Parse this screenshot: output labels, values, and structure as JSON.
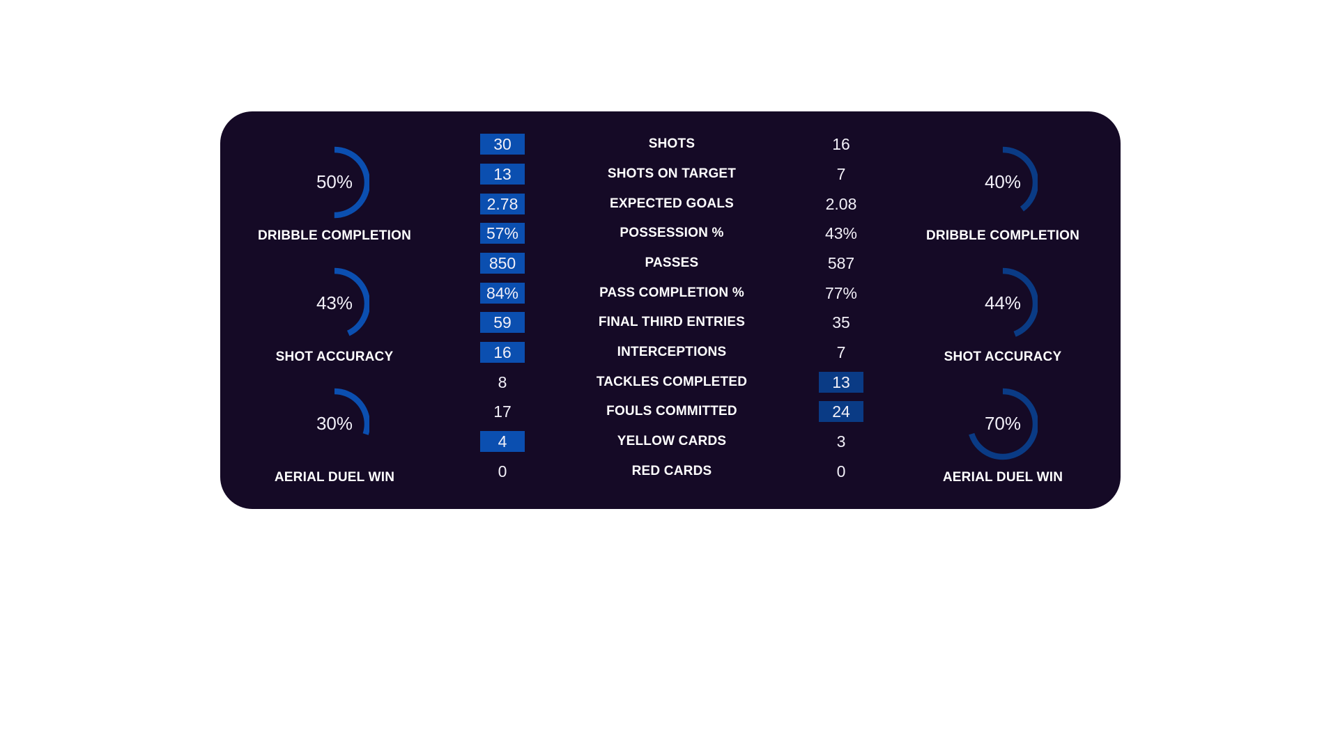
{
  "colors": {
    "background": "#ffffff",
    "card": "#150a26",
    "home_highlight": "#0b4fb0",
    "away_highlight": "#0a3b85",
    "text": "#ffffff"
  },
  "stats": [
    {
      "label": "SHOTS",
      "home": "30",
      "away": "16",
      "leader": "home"
    },
    {
      "label": "SHOTS ON TARGET",
      "home": "13",
      "away": "7",
      "leader": "home"
    },
    {
      "label": "EXPECTED GOALS",
      "home": "2.78",
      "away": "2.08",
      "leader": "home"
    },
    {
      "label": "POSSESSION %",
      "home": "57%",
      "away": "43%",
      "leader": "home"
    },
    {
      "label": "PASSES",
      "home": "850",
      "away": "587",
      "leader": "home"
    },
    {
      "label": "PASS COMPLETION %",
      "home": "84%",
      "away": "77%",
      "leader": "home"
    },
    {
      "label": "FINAL THIRD ENTRIES",
      "home": "59",
      "away": "35",
      "leader": "home"
    },
    {
      "label": "INTERCEPTIONS",
      "home": "16",
      "away": "7",
      "leader": "home"
    },
    {
      "label": "TACKLES COMPLETED",
      "home": "8",
      "away": "13",
      "leader": "away"
    },
    {
      "label": "FOULS COMMITTED",
      "home": "17",
      "away": "24",
      "leader": "away"
    },
    {
      "label": "YELLOW CARDS",
      "home": "4",
      "away": "3",
      "leader": "home"
    },
    {
      "label": "RED CARDS",
      "home": "0",
      "away": "0",
      "leader": "none"
    }
  ],
  "gauges": {
    "home": [
      {
        "label": "DRIBBLE COMPLETION",
        "value": 50,
        "display": "50%"
      },
      {
        "label": "SHOT ACCURACY",
        "value": 43,
        "display": "43%"
      },
      {
        "label": "AERIAL DUEL WIN",
        "value": 30,
        "display": "30%"
      }
    ],
    "away": [
      {
        "label": "DRIBBLE COMPLETION",
        "value": 40,
        "display": "40%"
      },
      {
        "label": "SHOT ACCURACY",
        "value": 44,
        "display": "44%"
      },
      {
        "label": "AERIAL DUEL WIN",
        "value": 70,
        "display": "70%"
      }
    ]
  },
  "chart_data": {
    "type": "table",
    "title": "",
    "categories": [
      "SHOTS",
      "SHOTS ON TARGET",
      "EXPECTED GOALS",
      "POSSESSION %",
      "PASSES",
      "PASS COMPLETION %",
      "FINAL THIRD ENTRIES",
      "INTERCEPTIONS",
      "TACKLES COMPLETED",
      "FOULS COMMITTED",
      "YELLOW CARDS",
      "RED CARDS"
    ],
    "series": [
      {
        "name": "Home",
        "values": [
          30,
          13,
          2.78,
          57,
          850,
          84,
          59,
          16,
          8,
          17,
          4,
          0
        ]
      },
      {
        "name": "Away",
        "values": [
          16,
          7,
          2.08,
          43,
          587,
          77,
          35,
          7,
          13,
          24,
          3,
          0
        ]
      }
    ],
    "gauges": [
      {
        "team": "Home",
        "metric": "DRIBBLE COMPLETION",
        "value": 50
      },
      {
        "team": "Home",
        "metric": "SHOT ACCURACY",
        "value": 43
      },
      {
        "team": "Home",
        "metric": "AERIAL DUEL WIN",
        "value": 30
      },
      {
        "team": "Away",
        "metric": "DRIBBLE COMPLETION",
        "value": 40
      },
      {
        "team": "Away",
        "metric": "SHOT ACCURACY",
        "value": 44
      },
      {
        "team": "Away",
        "metric": "AERIAL DUEL WIN",
        "value": 70
      }
    ]
  }
}
